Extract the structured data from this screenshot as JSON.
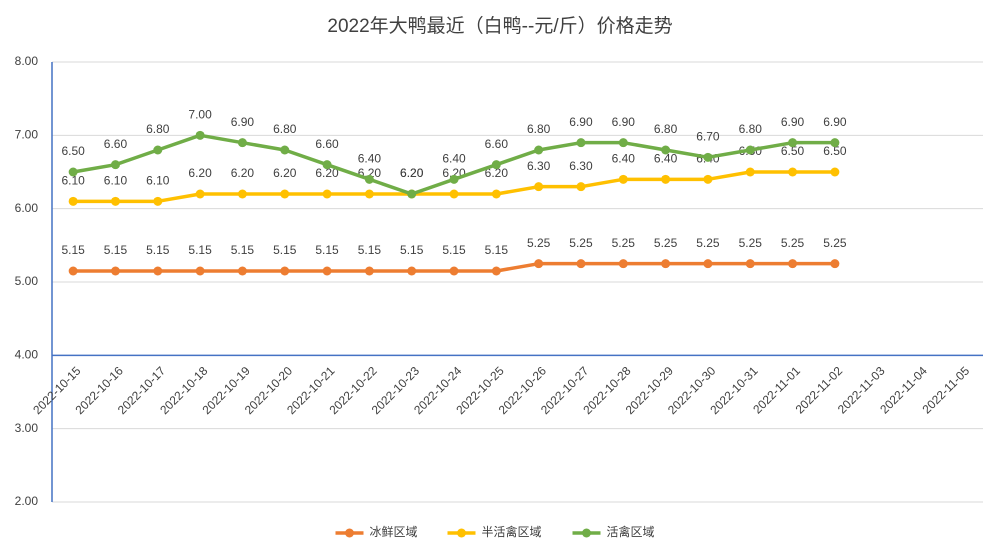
{
  "chart_data": {
    "type": "line",
    "title": "2022年大鸭最近（白鸭--元/斤）价格走势",
    "categories": [
      "2022-10-15",
      "2022-10-16",
      "2022-10-17",
      "2022-10-18",
      "2022-10-19",
      "2022-10-20",
      "2022-10-21",
      "2022-10-22",
      "2022-10-23",
      "2022-10-24",
      "2022-10-25",
      "2022-10-26",
      "2022-10-27",
      "2022-10-28",
      "2022-10-29",
      "2022-10-30",
      "2022-10-31",
      "2022-11-01",
      "2022-11-02",
      "2022-11-03",
      "2022-11-04",
      "2022-11-05"
    ],
    "series": [
      {
        "name": "冰鲜区域",
        "color": "#ED7D31",
        "values": [
          5.15,
          5.15,
          5.15,
          5.15,
          5.15,
          5.15,
          5.15,
          5.15,
          5.15,
          5.15,
          5.15,
          5.25,
          5.25,
          5.25,
          5.25,
          5.25,
          5.25,
          5.25,
          5.25,
          null,
          null,
          null
        ],
        "value_labels": [
          "5.15",
          "5.15",
          "5.15",
          "5.15",
          "5.15",
          "5.15",
          "5.15",
          "5.15",
          "5.15",
          "5.15",
          "5.15",
          "5.25",
          "5.25",
          "5.25",
          "5.25",
          "5.25",
          "5.25",
          "5.25",
          "5.25",
          null,
          null,
          null
        ]
      },
      {
        "name": "半活禽区域",
        "color": "#FFC000",
        "values": [
          6.1,
          6.1,
          6.1,
          6.2,
          6.2,
          6.2,
          6.2,
          6.2,
          6.2,
          6.2,
          6.2,
          6.3,
          6.3,
          6.4,
          6.4,
          6.4,
          6.5,
          6.5,
          6.5,
          null,
          null,
          null
        ],
        "value_labels": [
          "6.10",
          "6.10",
          "6.10",
          "6.20",
          "6.20",
          "6.20",
          "6.20",
          "6.20",
          "6.20",
          "6.20",
          "6.20",
          "6.30",
          "6.30",
          "6.40",
          "6.40",
          "6.40",
          "6.50",
          "6.50",
          "6.50",
          null,
          null,
          null
        ]
      },
      {
        "name": "活禽区域",
        "color": "#70AD47",
        "values": [
          6.5,
          6.6,
          6.8,
          7.0,
          6.9,
          6.8,
          6.6,
          6.4,
          6.2,
          6.4,
          6.6,
          6.8,
          6.9,
          6.9,
          6.8,
          6.7,
          6.8,
          6.9,
          6.9,
          null,
          null,
          null
        ],
        "value_labels": [
          "6.50",
          "6.60",
          "6.80",
          "7.00",
          "6.90",
          "6.80",
          "6.60",
          "6.40",
          "6.20",
          "6.40",
          "6.60",
          "6.80",
          "6.90",
          "6.90",
          "6.80",
          "6.70",
          "6.80",
          "6.90",
          "6.90",
          null,
          null,
          null
        ]
      }
    ],
    "ylim": [
      2,
      8
    ],
    "yticks": [
      {
        "value": 2,
        "label": "2.00"
      },
      {
        "value": 3,
        "label": "3.00"
      },
      {
        "value": 4,
        "label": "4.00"
      },
      {
        "value": 5,
        "label": "5.00"
      },
      {
        "value": 6,
        "label": "6.00"
      },
      {
        "value": 7,
        "label": "7.00"
      },
      {
        "value": 8,
        "label": "8.00"
      }
    ],
    "x_axis_crosses": 4,
    "grid": true,
    "legend": "bottom"
  }
}
